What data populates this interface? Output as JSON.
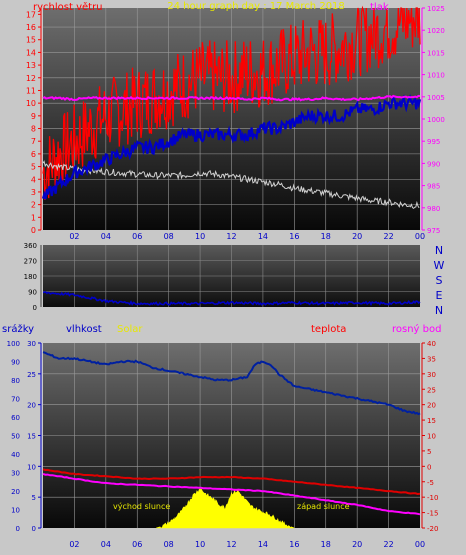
{
  "title": "24 hour graph day : 17 March 2018",
  "colors": {
    "wind": "#ff0000",
    "wind_dir": "#0000c8",
    "pressure": "#ff00ff",
    "grey_series": "#d0d0d0",
    "humidity": "#0020a0",
    "solar": "#ffff00",
    "temperature": "#e00000",
    "dewpoint": "#ff00ff",
    "title": "#e8e800"
  },
  "chart_data": [
    {
      "type": "line",
      "panel": "wind-pressure",
      "title": "24 hour graph day : 17 March 2018",
      "left_axis_label": "rychlost větru",
      "right_axis_label": "tlak",
      "x_ticks": [
        "02",
        "04",
        "06",
        "08",
        "10",
        "12",
        "14",
        "16",
        "18",
        "20",
        "22",
        "00"
      ],
      "ylim_left": [
        0,
        17.5
      ],
      "y_ticks_left": [
        0,
        1,
        2,
        3,
        4,
        5,
        6,
        7,
        8,
        9,
        10,
        11,
        12,
        13,
        14,
        15,
        16,
        17
      ],
      "ylim_right": [
        975,
        1025
      ],
      "y_ticks_right": [
        975,
        980,
        985,
        990,
        995,
        1000,
        1005,
        1010,
        1015,
        1020,
        1025
      ],
      "x": [
        0,
        1,
        2,
        3,
        4,
        5,
        6,
        7,
        8,
        9,
        10,
        11,
        12,
        13,
        14,
        15,
        16,
        17,
        18,
        19,
        20,
        21,
        22,
        23,
        24
      ],
      "series": [
        {
          "key": "gust",
          "axis": "left",
          "values": [
            3.0,
            4.5,
            5.5,
            6.5,
            7.5,
            8.0,
            8.5,
            9.0,
            9.5,
            10.0,
            10.5,
            10.5,
            10.5,
            11.0,
            11.0,
            11.5,
            12.0,
            12.5,
            12.5,
            13.0,
            13.5,
            14.0,
            14.5,
            15.0,
            15.5
          ]
        },
        {
          "key": "wind",
          "axis": "left",
          "values": [
            2.5,
            3.5,
            4.5,
            5.0,
            5.5,
            6.0,
            6.5,
            6.5,
            7.0,
            7.5,
            7.5,
            7.5,
            7.5,
            7.5,
            8.0,
            8.0,
            8.5,
            9.0,
            9.0,
            9.0,
            9.5,
            9.5,
            10.0,
            10.0,
            10.0
          ]
        },
        {
          "key": "pressure",
          "axis": "left",
          "values": [
            10.4,
            10.4,
            10.3,
            10.4,
            10.4,
            10.4,
            10.4,
            10.4,
            10.4,
            10.4,
            10.4,
            10.4,
            10.4,
            10.3,
            10.4,
            10.3,
            10.3,
            10.3,
            10.4,
            10.3,
            10.3,
            10.4,
            10.5,
            10.5,
            10.5
          ]
        },
        {
          "key": "grey",
          "axis": "left",
          "values": [
            5.3,
            5.0,
            4.8,
            4.7,
            4.6,
            4.5,
            4.4,
            4.3,
            4.3,
            4.3,
            4.5,
            4.4,
            4.2,
            4.0,
            3.8,
            3.6,
            3.3,
            3.1,
            2.9,
            2.7,
            2.5,
            2.3,
            2.2,
            2.0,
            1.9
          ]
        }
      ]
    },
    {
      "type": "line",
      "panel": "wind-direction",
      "y_ticks": [
        0,
        90,
        180,
        270,
        360
      ],
      "ylim": [
        0,
        360
      ],
      "compass": [
        "N",
        "W",
        "S",
        "E",
        "N"
      ],
      "x": [
        0,
        2,
        4,
        6,
        8,
        10,
        12,
        14,
        16,
        18,
        20,
        22,
        24
      ],
      "values": [
        85,
        70,
        35,
        20,
        20,
        20,
        25,
        20,
        25,
        20,
        25,
        20,
        30
      ]
    },
    {
      "type": "line",
      "panel": "weather",
      "labels": {
        "precip": "srážky",
        "humidity": "vlhkost",
        "solar": "Solar",
        "temperature": "teplota",
        "dewpoint": "rosný bod",
        "sunrise": "východ slunce",
        "sunset": "západ slunce"
      },
      "x_ticks": [
        "02",
        "04",
        "06",
        "08",
        "10",
        "12",
        "14",
        "16",
        "18",
        "20",
        "22",
        "00"
      ],
      "y_ticks_precip": [
        0,
        10,
        20,
        30,
        40,
        50,
        60,
        70,
        80,
        90,
        100
      ],
      "y_ticks_humidity": [
        0,
        5,
        10,
        15,
        20,
        25,
        30
      ],
      "y_ticks_temp": [
        40,
        35,
        30,
        25,
        20,
        15,
        10,
        5,
        0,
        -5,
        -10,
        -15,
        -20
      ],
      "ylim_humidity": [
        0,
        30
      ],
      "ylim_temp": [
        -20,
        40
      ],
      "humidity": {
        "x": [
          0,
          1,
          2,
          3,
          4,
          5,
          6,
          7,
          8,
          9,
          10,
          11,
          12,
          13,
          13.5,
          14,
          14.5,
          15,
          16,
          17,
          18,
          19,
          20,
          21,
          22,
          23,
          24
        ],
        "values": [
          28.5,
          27.5,
          27.5,
          27.0,
          26.5,
          27.0,
          27.0,
          26.0,
          25.5,
          25.0,
          24.5,
          24.0,
          24.0,
          24.5,
          26.5,
          27.0,
          26.5,
          25.0,
          23.0,
          22.5,
          22.0,
          21.5,
          21.0,
          20.5,
          20.0,
          19.0,
          18.5
        ]
      },
      "temperature": {
        "x": [
          0,
          2,
          4,
          6,
          8,
          10,
          12,
          14,
          16,
          18,
          20,
          22,
          24
        ],
        "values": [
          -1.0,
          -2.5,
          -3.2,
          -4.0,
          -4.0,
          -3.5,
          -3.5,
          -4.0,
          -5.0,
          -6.0,
          -7.0,
          -8.0,
          -9.0
        ]
      },
      "dewpoint": {
        "x": [
          0,
          2,
          4,
          6,
          8,
          10,
          12,
          14,
          16,
          18,
          20,
          22,
          24
        ],
        "values": [
          -2.5,
          -4.0,
          -5.5,
          -6.0,
          -6.5,
          -7.0,
          -7.5,
          -8.0,
          -9.5,
          -11.0,
          -12.5,
          -14.5,
          -15.5
        ]
      },
      "solar": {
        "x": [
          7.2,
          7.6,
          8,
          8.4,
          8.8,
          9.2,
          9.6,
          10,
          10.4,
          10.8,
          11.2,
          11.6,
          12,
          12.4,
          12.8,
          13.2,
          13.6,
          14,
          14.4,
          14.8,
          15.2,
          15.6,
          16
        ],
        "values": [
          0,
          0.3,
          0.8,
          1.6,
          2.6,
          4.0,
          5.4,
          6.4,
          5.4,
          4.8,
          3.8,
          3.3,
          5.6,
          6.0,
          4.8,
          3.6,
          3.0,
          2.6,
          2.2,
          1.6,
          0.9,
          0.4,
          0
        ]
      }
    }
  ]
}
